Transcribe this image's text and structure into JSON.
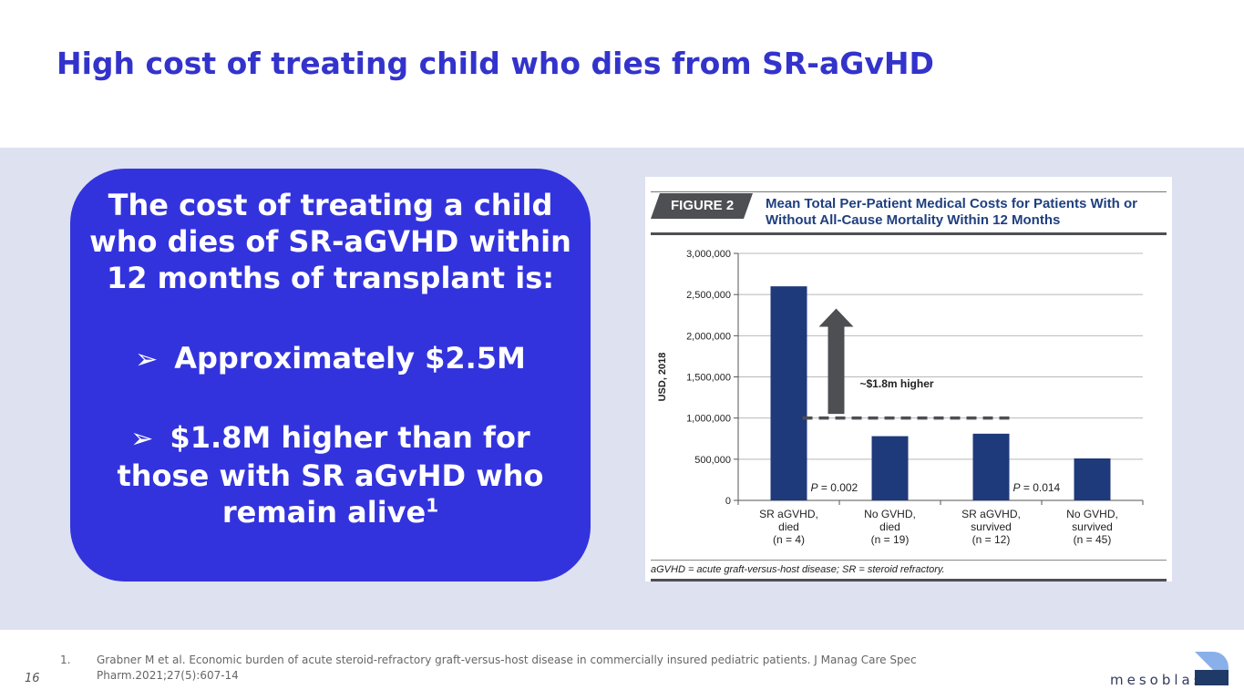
{
  "slide": {
    "title": "High cost of treating child who dies from SR-aGvHD",
    "page_number": "16",
    "brand": "mesoblast"
  },
  "callout": {
    "lead_lines": [
      "The cost of treating a child",
      "who dies of SR-aGVHD within",
      "12 months of transplant is:"
    ],
    "bullet_glyph": "➢",
    "bullet_1": "Approximately $2.5M",
    "bullet_2_lines": [
      "$1.8M higher than for",
      "those with SR aGvHD who",
      "remain alive"
    ],
    "bullet_2_sup": "1"
  },
  "figure": {
    "tag": "FIGURE 2",
    "title_lines": [
      "Mean Total Per-Patient Medical Costs for Patients With or",
      "Without All-Cause Mortality Within 12 Months"
    ],
    "note": "aGVHD = acute graft-versus-host disease; SR = steroid refractory."
  },
  "chart_data": {
    "type": "bar",
    "ylabel": "USD, 2018",
    "xlabel": "",
    "ylim": [
      0,
      3000000
    ],
    "yticks": [
      0,
      500000,
      1000000,
      1500000,
      2000000,
      2500000,
      3000000
    ],
    "ytick_labels": [
      "0",
      "500,000",
      "1,000,000",
      "1,500,000",
      "2,000,000",
      "2,500,000",
      "3,000,000"
    ],
    "categories": [
      [
        "SR aGVHD,",
        "died",
        "(n = 4)"
      ],
      [
        "No GVHD,",
        "died",
        "(n = 19)"
      ],
      [
        "SR aGVHD,",
        "survived",
        "(n = 12)"
      ],
      [
        "No GVHD,",
        "survived",
        "(n = 45)"
      ]
    ],
    "values": [
      2600000,
      780000,
      810000,
      510000
    ],
    "bar_color": "#1f3a7a",
    "grid": true,
    "annotations": {
      "difference_label": "~$1.8m higher",
      "reference_line_value": 1000000,
      "arrow_from_value": 1050000,
      "arrow_to_value": 2330000,
      "p_value_1_prefix": "P",
      "p_value_1": " = 0.002",
      "p_value_2_prefix": "P",
      "p_value_2": " = 0.014"
    }
  },
  "footnote": {
    "number": "1.",
    "text": "Grabner M et al. Economic burden of acute steroid-refractory graft-versus-host disease in commercially insured pediatric patients. J Manag Care Spec Pharm.2021;27(5):607-14"
  },
  "colors": {
    "title": "#3333cc",
    "band": "#dde1f0",
    "callout": "#3333dd",
    "bar": "#1f3a7a",
    "logo_light": "#8ab0ea",
    "logo_dark": "#1f3a66"
  }
}
